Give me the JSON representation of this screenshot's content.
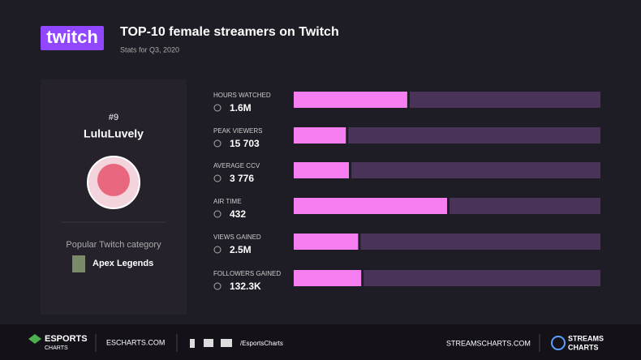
{
  "header": {
    "logo": "twitch",
    "title": "TOP-10 female streamers on Twitch",
    "subtitle": "Stats for Q3, 2020"
  },
  "streamer": {
    "rank": "#9",
    "name": "LuluLuvely",
    "category_label": "Popular Twitch category",
    "category": "Apex Legends"
  },
  "metrics": [
    {
      "label": "HOURS WATCHED",
      "value": "1.6M",
      "bar": 37
    },
    {
      "label": "PEAK VIEWERS",
      "value": "15 703",
      "bar": 17
    },
    {
      "label": "AVERAGE CCV",
      "value": "3 776",
      "bar": 18
    },
    {
      "label": "AIR TIME",
      "value": "432",
      "bar": 50
    },
    {
      "label": "VIEWS GAINED",
      "value": "2.5M",
      "bar": 21
    },
    {
      "label": "FOLLOWERS GAINED",
      "value": "132.3K",
      "bar": 22
    }
  ],
  "footer": {
    "brand1_top": "ESPORTS",
    "brand1_bottom": "CHARTS",
    "site1": "ESCHARTS.COM",
    "handle": "/EsportsCharts",
    "site2": "STREAMSCHARTS.COM",
    "brand2_top": "STREAMS",
    "brand2_bottom": "CHARTS"
  }
}
